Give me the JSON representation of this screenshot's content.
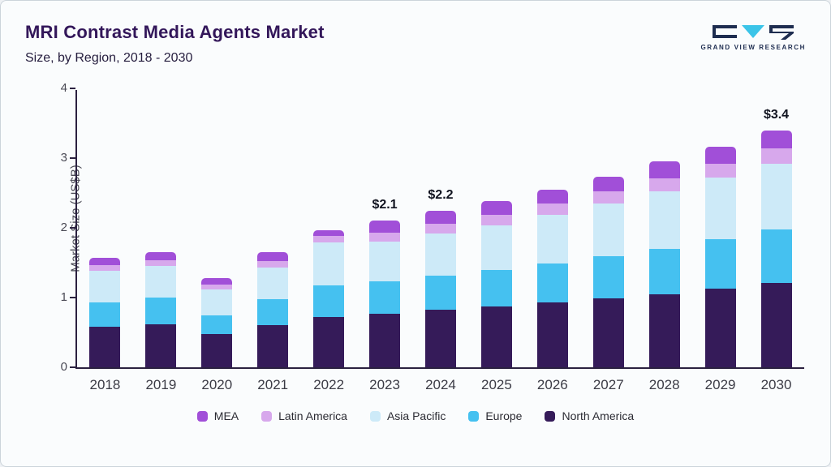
{
  "header": {
    "title": "MRI Contrast Media Agents Market",
    "subtitle": "Size, by Region, 2018 - 2030"
  },
  "logo": {
    "text": "GRAND VIEW RESEARCH"
  },
  "chart_data": {
    "type": "bar",
    "stacked": true,
    "title": "MRI Contrast Media Agents Market Size, by Region, 2018 - 2030",
    "xlabel": "",
    "ylabel": "Market Size (US$B)",
    "ylim": [
      0,
      4
    ],
    "yticks": [
      0,
      1,
      2,
      3,
      4
    ],
    "grid": false,
    "legend_position": "bottom",
    "categories": [
      "2018",
      "2019",
      "2020",
      "2021",
      "2022",
      "2023",
      "2024",
      "2025",
      "2026",
      "2027",
      "2028",
      "2029",
      "2030"
    ],
    "series": [
      {
        "name": "North America",
        "color": "#351b59",
        "values": [
          0.58,
          0.62,
          0.48,
          0.61,
          0.72,
          0.77,
          0.82,
          0.87,
          0.93,
          0.99,
          1.05,
          1.13,
          1.21
        ]
      },
      {
        "name": "Europe",
        "color": "#45c1f0",
        "values": [
          0.35,
          0.38,
          0.27,
          0.37,
          0.45,
          0.46,
          0.49,
          0.52,
          0.56,
          0.6,
          0.65,
          0.71,
          0.77
        ]
      },
      {
        "name": "Asia Pacific",
        "color": "#cdeaf8",
        "values": [
          0.45,
          0.45,
          0.37,
          0.45,
          0.62,
          0.57,
          0.61,
          0.65,
          0.7,
          0.76,
          0.82,
          0.88,
          0.94
        ]
      },
      {
        "name": "Latin America",
        "color": "#d7a8ec",
        "values": [
          0.08,
          0.09,
          0.07,
          0.09,
          0.09,
          0.13,
          0.14,
          0.15,
          0.16,
          0.17,
          0.19,
          0.2,
          0.22
        ]
      },
      {
        "name": "MEA",
        "color": "#a14fd8",
        "values": [
          0.11,
          0.11,
          0.09,
          0.13,
          0.09,
          0.17,
          0.18,
          0.19,
          0.2,
          0.21,
          0.24,
          0.24,
          0.26
        ]
      }
    ],
    "totals": [
      1.57,
      1.65,
      1.28,
      1.65,
      1.97,
      2.1,
      2.24,
      2.38,
      2.55,
      2.73,
      2.95,
      3.16,
      3.4
    ],
    "annotations": [
      {
        "category": "2023",
        "text": "$2.1"
      },
      {
        "category": "2024",
        "text": "$2.2"
      },
      {
        "category": "2030",
        "text": "$3.4"
      }
    ],
    "legend_order": [
      "MEA",
      "Latin America",
      "Asia Pacific",
      "Europe",
      "North America"
    ]
  }
}
